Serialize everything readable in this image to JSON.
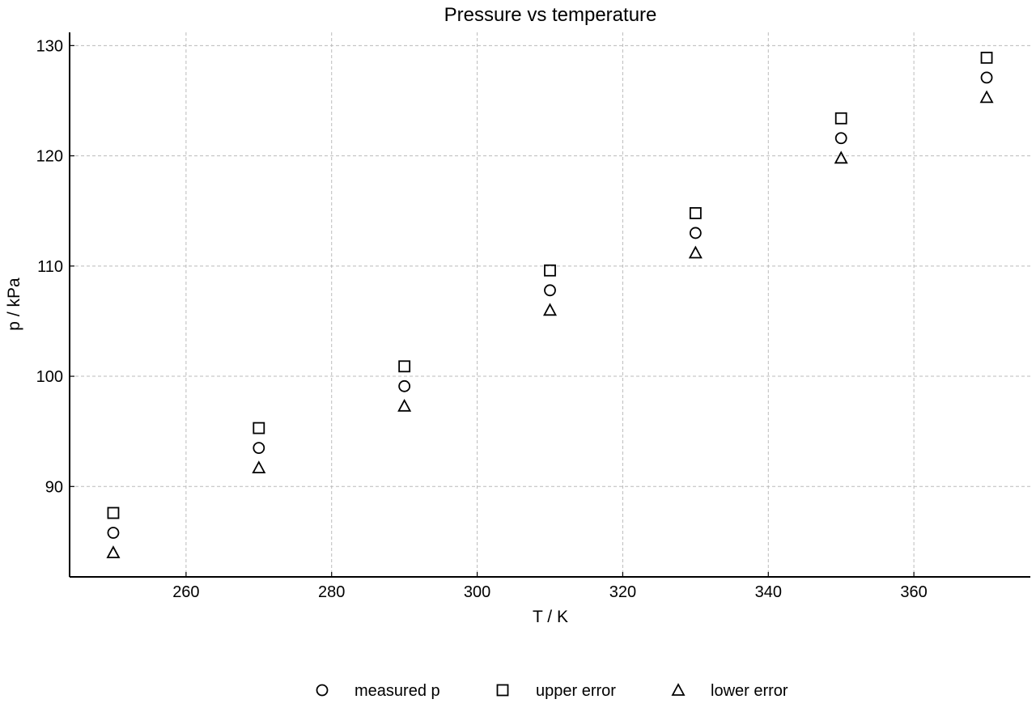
{
  "chart_data": {
    "type": "scatter",
    "title": "Pressure vs temperature",
    "xlabel": "T / K",
    "ylabel": "p / kPa",
    "xlim": [
      244,
      376
    ],
    "ylim": [
      81.8,
      131.2
    ],
    "xticks": [
      260,
      280,
      300,
      320,
      340,
      360
    ],
    "yticks": [
      90,
      100,
      110,
      120,
      130
    ],
    "grid": true,
    "legend_position": "bottom-center",
    "x": [
      250,
      270,
      290,
      310,
      330,
      350,
      370
    ],
    "series": [
      {
        "name": "measured p",
        "marker": "circle",
        "values": [
          85.8,
          93.5,
          99.1,
          107.8,
          113.0,
          121.6,
          127.1
        ]
      },
      {
        "name": "upper error",
        "marker": "square",
        "values": [
          87.6,
          95.3,
          100.9,
          109.6,
          114.8,
          123.4,
          128.9
        ]
      },
      {
        "name": "lower error",
        "marker": "triangle",
        "values": [
          84.0,
          91.7,
          97.3,
          106.0,
          111.2,
          119.8,
          125.3
        ]
      }
    ],
    "colors": {
      "marker_stroke": "#000000",
      "grid": "#bbbbbb",
      "axis": "#000000"
    }
  }
}
